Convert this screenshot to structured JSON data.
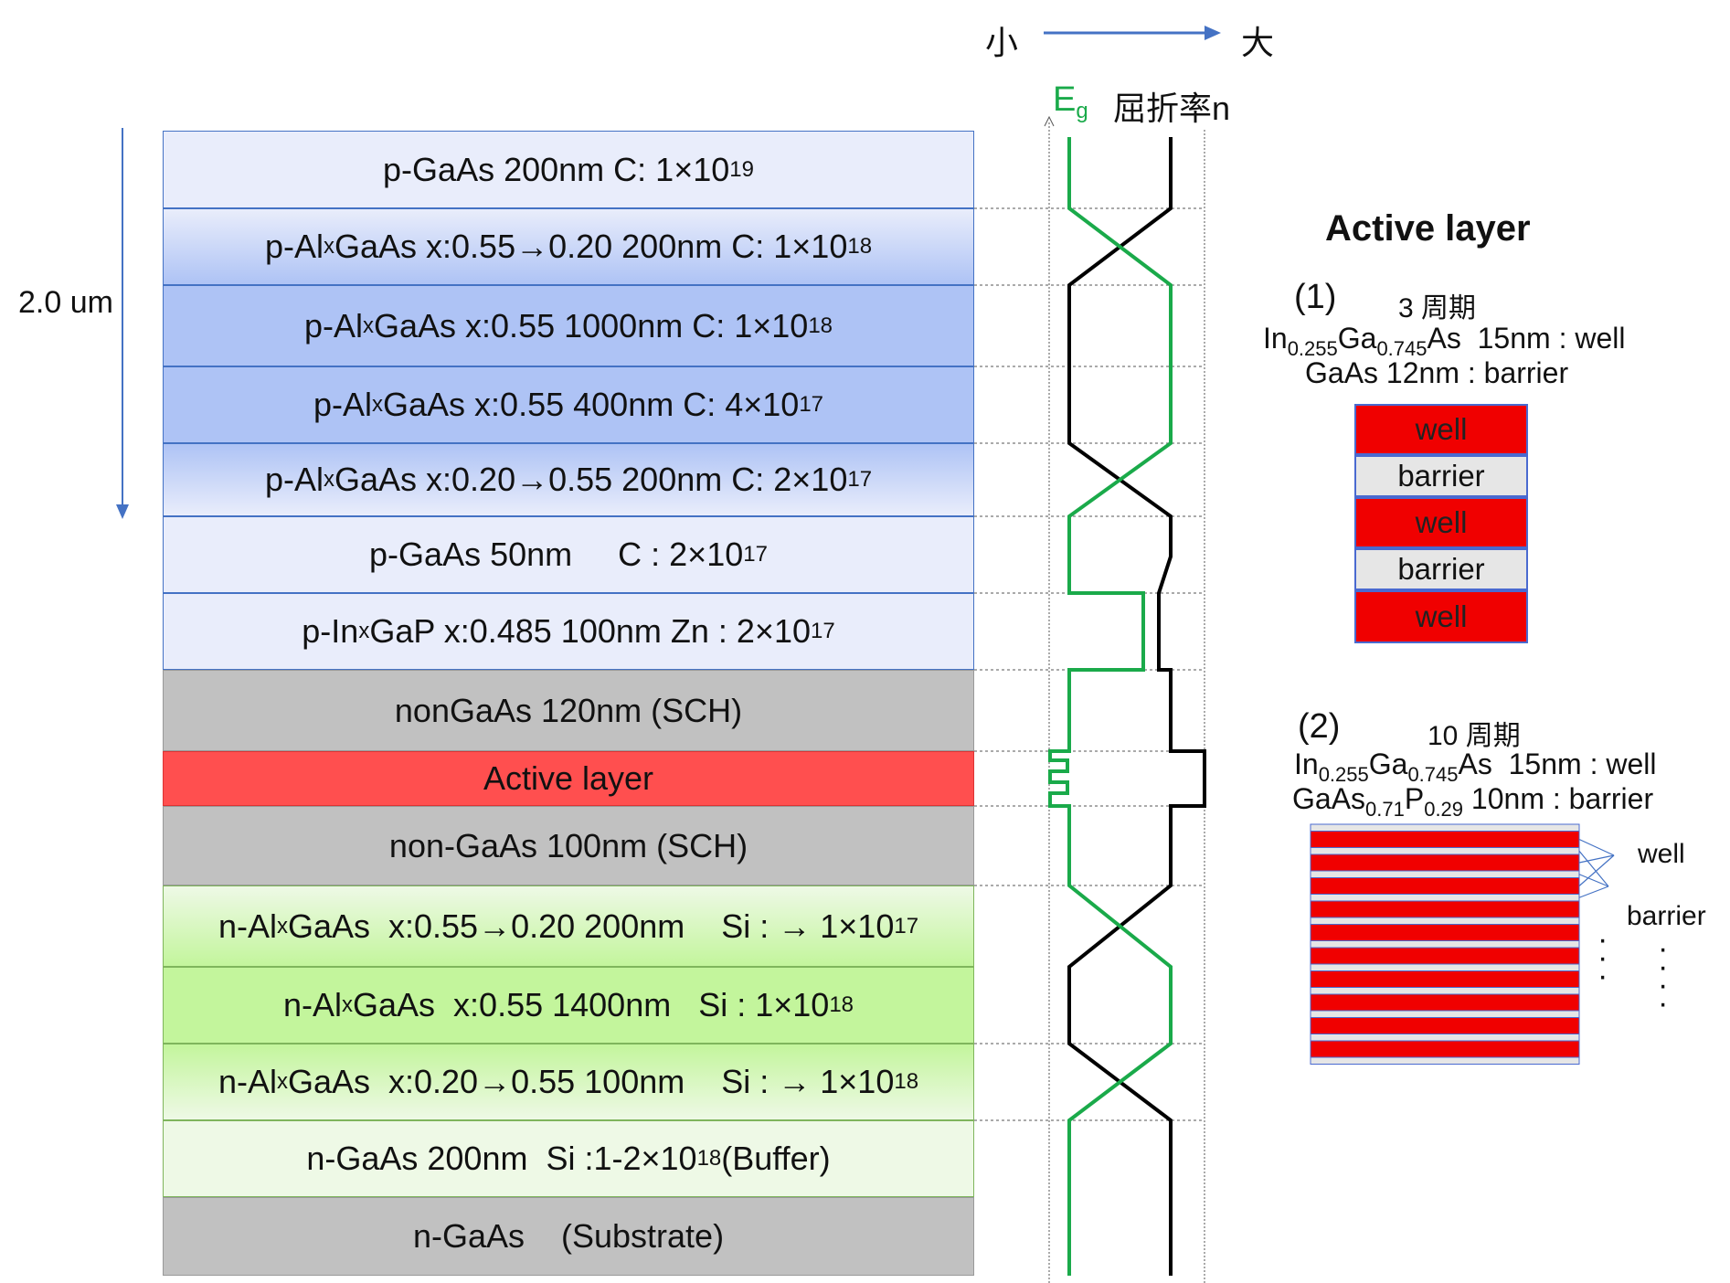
{
  "scale": {
    "small": "小",
    "large": "大"
  },
  "curves": {
    "eg_main": "E",
    "eg_sub": "g",
    "refractive_index": "屈折率n"
  },
  "depth_label": "2.0 um",
  "layers": [
    {
      "pre": "p-GaAs 200nm C: 1",
      "times": "×",
      "base": "10",
      "exp": "19"
    },
    {
      "pre": "p-Al",
      "sub": "x",
      "mid": "GaAs x:0.55→0.20 200nm C: 1",
      "times": "×",
      "base": "10",
      "exp": "18"
    },
    {
      "pre": "p-Al",
      "sub": "x",
      "mid": "GaAs x:0.55 1000nm C: 1",
      "times": "×",
      "base": "10",
      "exp": "18"
    },
    {
      "pre": "p-Al",
      "sub": "x",
      "mid": "GaAs x:0.55 400nm C: 4",
      "times": "×",
      "base": "10",
      "exp": "17"
    },
    {
      "pre": "p-Al",
      "sub": "x",
      "mid": "GaAs x:0.20→0.55 200nm C: 2",
      "times": "×",
      "base": "10",
      "exp": "17"
    },
    {
      "pre": "p-GaAs 50nm     C : 2",
      "times": "×",
      "base": "10",
      "exp": "17"
    },
    {
      "pre": "p-In",
      "sub": "x",
      "mid": "GaP x:0.485 100nm Zn : 2",
      "times": "×",
      "base": "10",
      "exp": "17"
    },
    {
      "pre": "nonGaAs 120nm (SCH)"
    },
    {
      "pre": "Active layer"
    },
    {
      "pre": "non-GaAs 100nm (SCH)"
    },
    {
      "pre": "n-Al",
      "sub": "x",
      "mid": "GaAs  x:0.55→0.20 200nm    Si : → 1",
      "times": "×",
      "base": "10",
      "exp": "17"
    },
    {
      "pre": "n-Al",
      "sub": "x",
      "mid": "GaAs  x:0.55 1400nm   Si : 1",
      "times": "×",
      "base": "10",
      "exp": "18"
    },
    {
      "pre": "n-Al",
      "sub": "x",
      "mid": "GaAs  x:0.20→0.55 100nm    Si : → 1",
      "times": "×",
      "base": "10",
      "exp": "18"
    },
    {
      "pre": "n-GaAs 200nm  Si :1-2",
      "times": "×",
      "base": "10",
      "exp": "18",
      "post": "(Buffer)"
    },
    {
      "pre": "n-GaAs    (Substrate)"
    }
  ],
  "active_layer": {
    "title": "Active layer",
    "option1": {
      "number": "(1)",
      "period": "3 周期",
      "well_line": {
        "a": "In",
        "a_sub": "0.255",
        "b": "Ga",
        "b_sub": "0.745",
        "c": "As  15nm : well"
      },
      "barrier_line": "GaAs 12nm : barrier",
      "blocks": [
        "well",
        "barrier",
        "well",
        "barrier",
        "well"
      ]
    },
    "option2": {
      "number": "(2)",
      "period": "10 周期",
      "well_line": {
        "a": "In",
        "a_sub": "0.255",
        "b": "Ga",
        "b_sub": "0.745",
        "c": "As  15nm : well"
      },
      "barrier_line": {
        "a": "GaAs",
        "a_sub": "0.71",
        "b": "P",
        "b_sub": "0.29",
        "c": " 10nm : barrier"
      },
      "well_label": "well",
      "barrier_label": "barrier",
      "periods": 10
    }
  },
  "colors": {
    "eg_curve": "#1aaa4a",
    "n_curve": "#000000",
    "arrow": "#4472c4",
    "well": "#f00000",
    "barrier": "#e6e6e6"
  }
}
